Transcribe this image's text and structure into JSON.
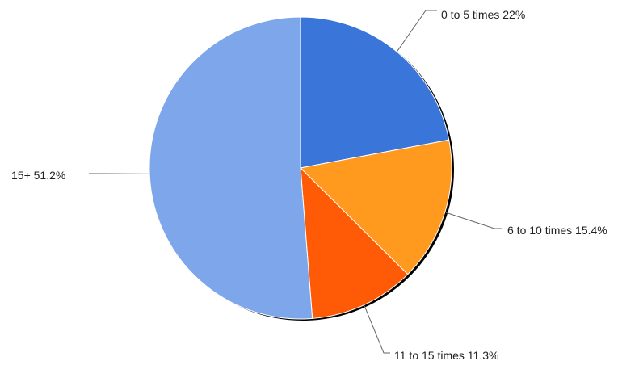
{
  "chart_data": {
    "type": "pie",
    "title": "",
    "start_angle_deg": 0,
    "direction": "clockwise",
    "slices": [
      {
        "name": "0 to 5 times",
        "value": 22.0,
        "label": "0 to 5 times 22%",
        "color": "#3a75d9"
      },
      {
        "name": "6 to 10 times",
        "value": 15.4,
        "label": "6 to 10 times 15.4%",
        "color": "#ff9a1f"
      },
      {
        "name": "11 to 15 times",
        "value": 11.3,
        "label": "11 to 15 times 11.3%",
        "color": "#ff5a05"
      },
      {
        "name": "15+",
        "value": 51.2,
        "label": "15+ 51.2%",
        "color": "#7ea6ea"
      }
    ]
  }
}
